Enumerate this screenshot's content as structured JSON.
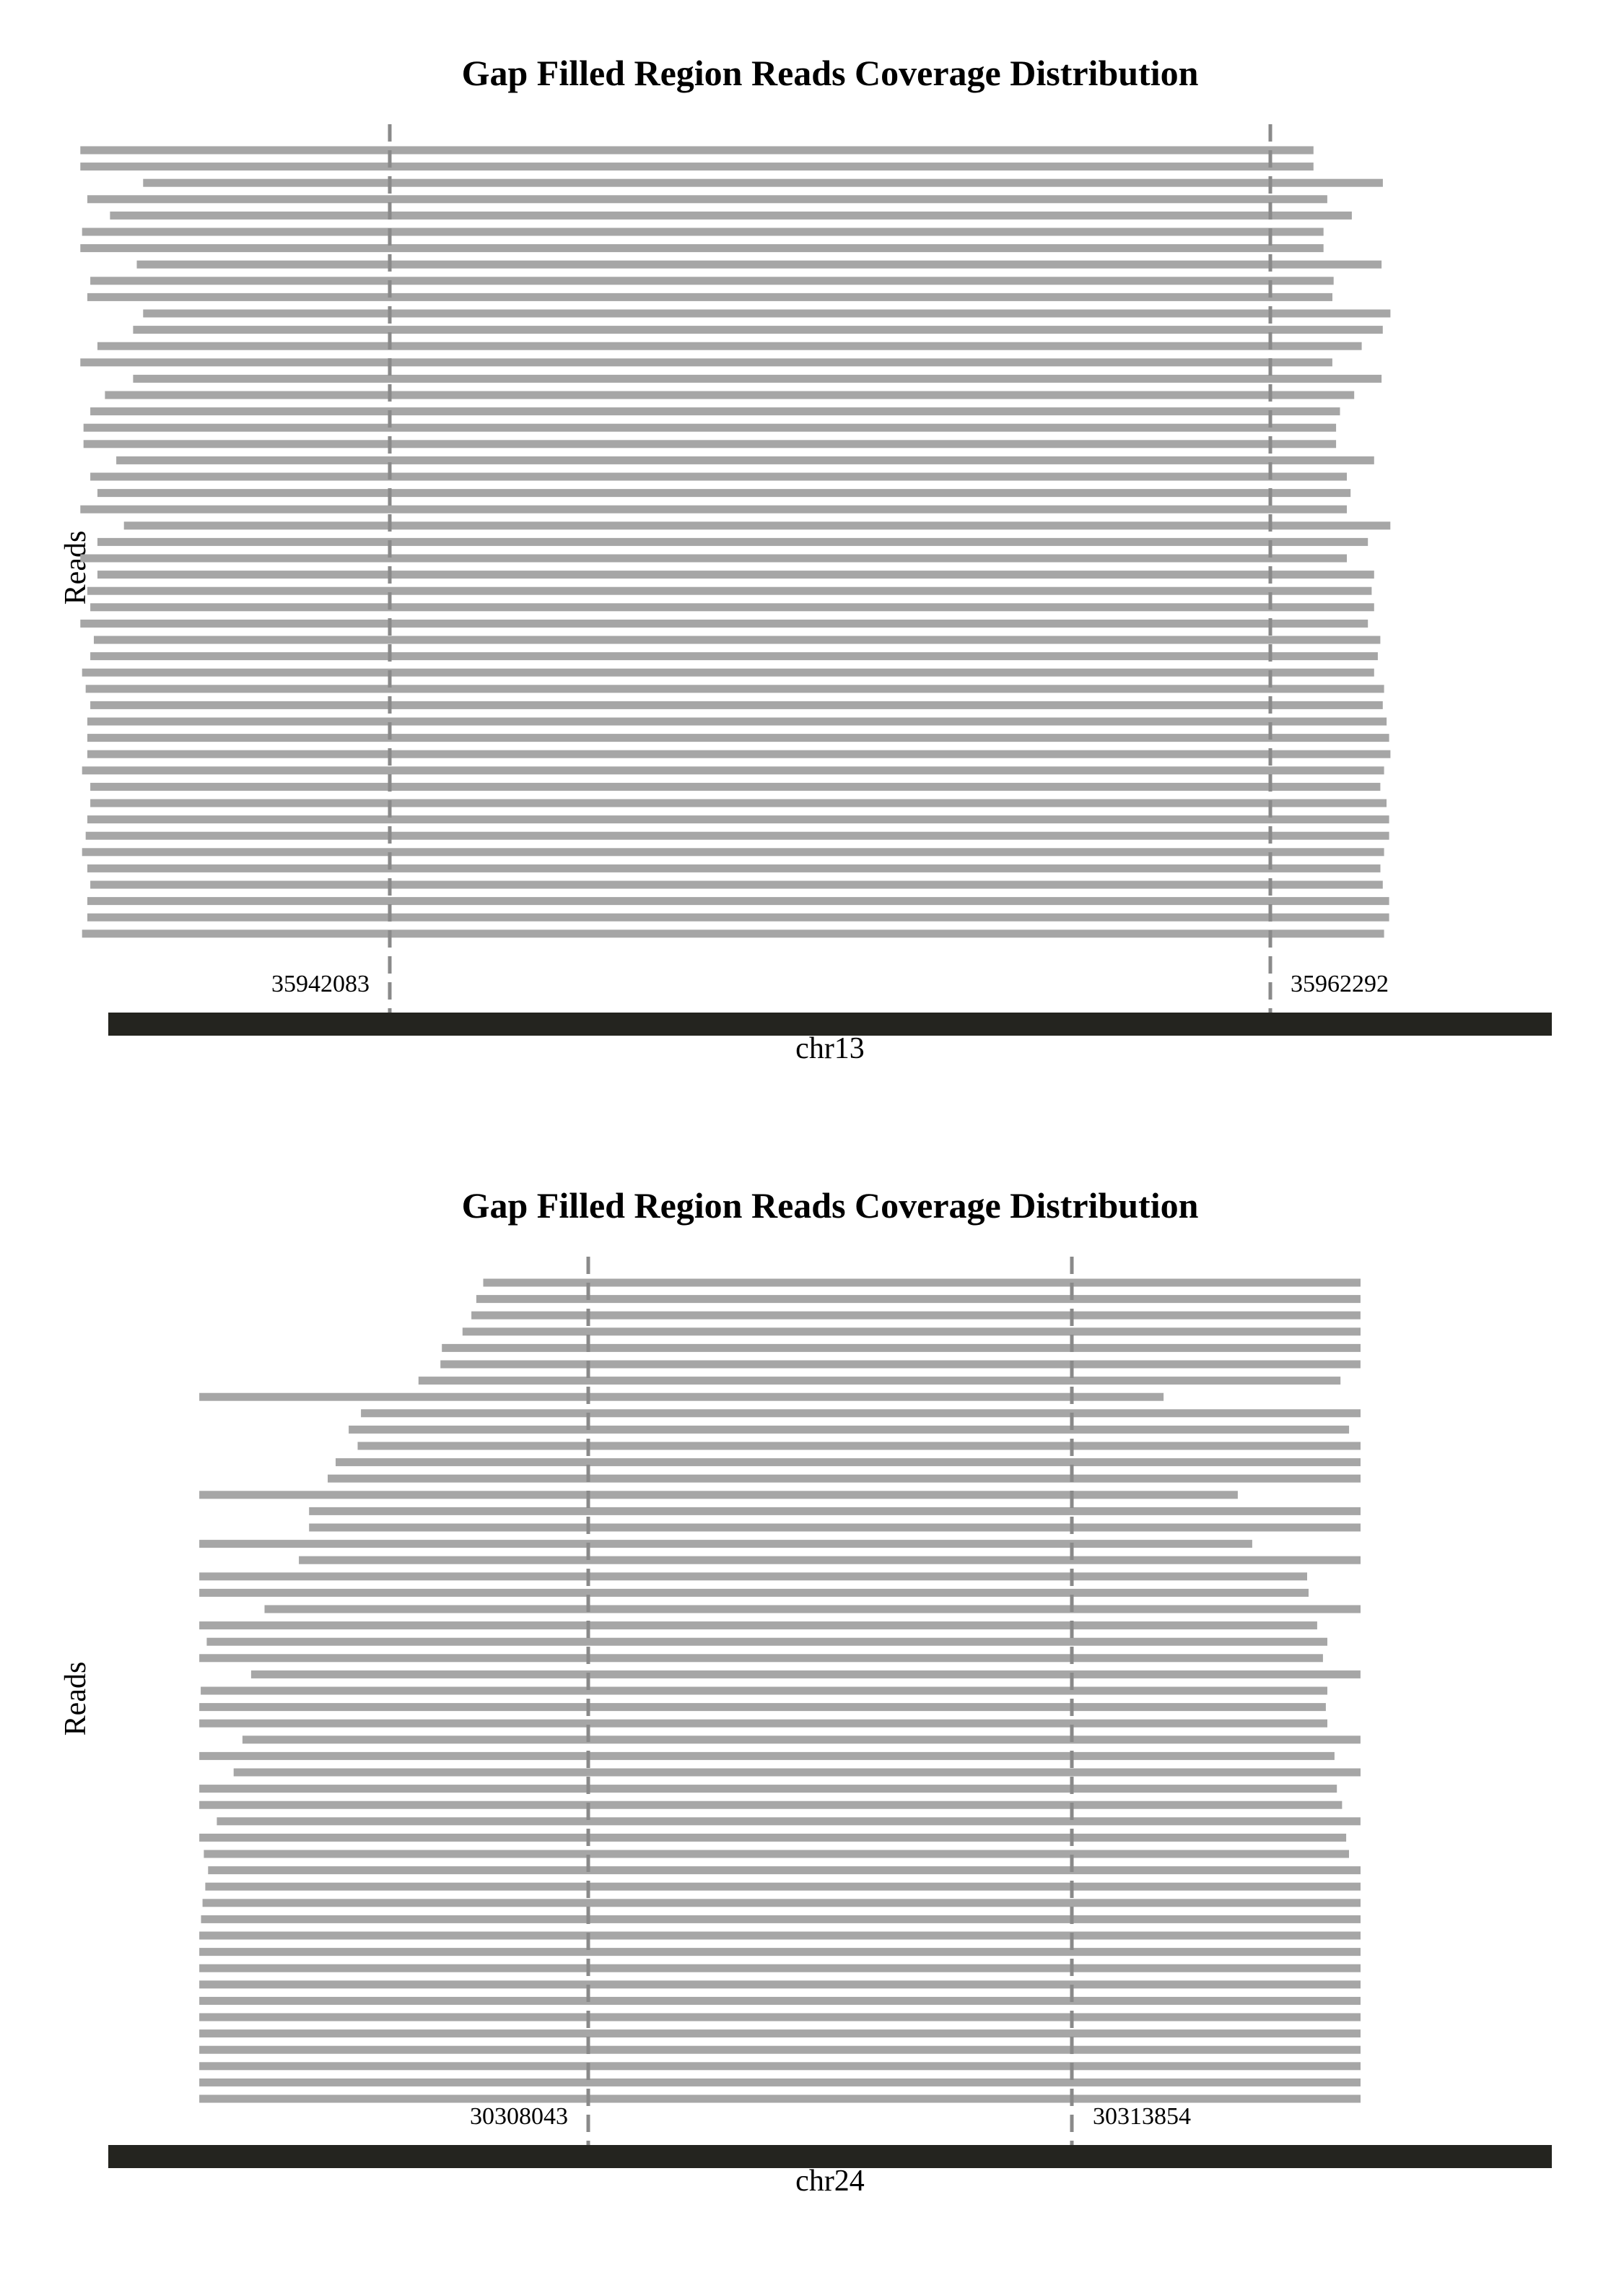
{
  "colors": {
    "read": "#a6a6a6",
    "boundary": "#8a8a8a",
    "chromosome_bar": "#24241f",
    "text": "#000000"
  },
  "chart_data": [
    {
      "type": "bar",
      "title": "Gap Filled Region Reads Coverage Distribution",
      "ylabel": "Reads",
      "xlabel": "chr13",
      "chromosome": "chr13",
      "gap_start": 35942083,
      "gap_end": 35962292,
      "gap_start_label": "35942083",
      "gap_end_label": "35962292",
      "reads": [
        [
          35934982,
          35963283
        ],
        [
          35934982,
          35963283
        ],
        [
          35936422,
          35964874
        ],
        [
          35935142,
          35963599
        ],
        [
          35935662,
          35964162
        ],
        [
          35935022,
          35963513
        ],
        [
          35934982,
          35963513
        ],
        [
          35936277,
          35964845
        ],
        [
          35935211,
          35963746
        ],
        [
          35935142,
          35963716
        ],
        [
          35936422,
          35965048
        ],
        [
          35936193,
          35964874
        ],
        [
          35935374,
          35964389
        ],
        [
          35934982,
          35963716
        ],
        [
          35936193,
          35964845
        ],
        [
          35935547,
          35964218
        ],
        [
          35935211,
          35963891
        ],
        [
          35935055,
          35963801
        ],
        [
          35935055,
          35963801
        ],
        [
          35935807,
          35964674
        ],
        [
          35935211,
          35964048
        ],
        [
          35935374,
          35964134
        ],
        [
          35934982,
          35964048
        ],
        [
          35935983,
          35965048
        ],
        [
          35935374,
          35964532
        ],
        [
          35934982,
          35964048
        ],
        [
          35935374,
          35964674
        ],
        [
          35935142,
          35964618
        ],
        [
          35935211,
          35964674
        ],
        [
          35934982,
          35964532
        ],
        [
          35935292,
          35964817
        ],
        [
          35935211,
          35964760
        ],
        [
          35935022,
          35964674
        ],
        [
          35935105,
          35964903
        ],
        [
          35935211,
          35964874
        ],
        [
          35935142,
          35964960
        ],
        [
          35935142,
          35965019
        ],
        [
          35935142,
          35965048
        ],
        [
          35935022,
          35964903
        ],
        [
          35935211,
          35964817
        ],
        [
          35935211,
          35964960
        ],
        [
          35935142,
          35965019
        ],
        [
          35935105,
          35965019
        ],
        [
          35935022,
          35964903
        ],
        [
          35935142,
          35964817
        ],
        [
          35935211,
          35964874
        ],
        [
          35935142,
          35965019
        ],
        [
          35935142,
          35965019
        ],
        [
          35935022,
          35964903
        ]
      ]
    },
    {
      "type": "bar",
      "title": "Gap Filled Region Reads Coverage Distribution",
      "ylabel": "Reads",
      "xlabel": "chr24",
      "chromosome": "chr24",
      "gap_start": 30308043,
      "gap_end": 30313854,
      "gap_start_label": "30308043",
      "gap_end_label": "30313854",
      "reads": [
        [
          30306781,
          30317323
        ],
        [
          30306698,
          30317323
        ],
        [
          30306639,
          30317323
        ],
        [
          30306532,
          30317323
        ],
        [
          30306284,
          30317323
        ],
        [
          30306267,
          30317323
        ],
        [
          30306003,
          30317082
        ],
        [
          30303369,
          30314956
        ],
        [
          30305312,
          30317323
        ],
        [
          30305164,
          30317185
        ],
        [
          30305272,
          30317323
        ],
        [
          30305007,
          30317323
        ],
        [
          30304912,
          30317323
        ],
        [
          30303369,
          30315848
        ],
        [
          30304688,
          30317323
        ],
        [
          30304688,
          30317323
        ],
        [
          30303369,
          30316021
        ],
        [
          30304566,
          30317323
        ],
        [
          30303369,
          30316681
        ],
        [
          30303369,
          30316699
        ],
        [
          30304153,
          30317323
        ],
        [
          30303369,
          30316802
        ],
        [
          30303458,
          30316924
        ],
        [
          30303369,
          30316871
        ],
        [
          30303992,
          30317323
        ],
        [
          30303386,
          30316924
        ],
        [
          30303369,
          30316906
        ],
        [
          30303369,
          30316924
        ],
        [
          30303888,
          30317323
        ],
        [
          30303369,
          30317010
        ],
        [
          30303782,
          30317323
        ],
        [
          30303369,
          30317039
        ],
        [
          30303369,
          30317101
        ],
        [
          30303580,
          30317323
        ],
        [
          30303369,
          30317151
        ],
        [
          30303424,
          30317185
        ],
        [
          30303475,
          30317323
        ],
        [
          30303441,
          30317323
        ],
        [
          30303408,
          30317323
        ],
        [
          30303390,
          30317323
        ],
        [
          30303369,
          30317323
        ],
        [
          30303369,
          30317323
        ],
        [
          30303369,
          30317323
        ],
        [
          30303369,
          30317323
        ],
        [
          30303369,
          30317323
        ],
        [
          30303369,
          30317323
        ],
        [
          30303369,
          30317323
        ],
        [
          30303369,
          30317323
        ],
        [
          30303369,
          30317323
        ],
        [
          30303369,
          30317323
        ],
        [
          30303369,
          30317323
        ]
      ]
    }
  ]
}
